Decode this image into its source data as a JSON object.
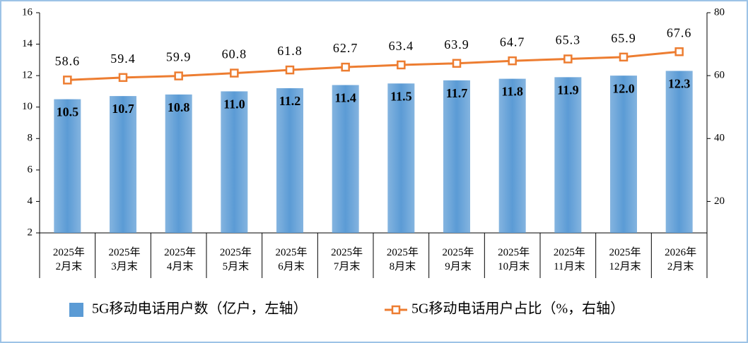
{
  "chart_data": {
    "type": "bar-line",
    "categories": [
      "2025年\n2月末",
      "2025年\n3月末",
      "2025年\n4月末",
      "2025年\n5月末",
      "2025年\n6月末",
      "2025年\n7月末",
      "2025年\n8月末",
      "2025年\n9月末",
      "2025年\n10月末",
      "2025年\n11月末",
      "2025年\n12月末",
      "2026年\n2月末"
    ],
    "series": [
      {
        "name": "5G移动电话用户数（亿户，左轴）",
        "type": "bar",
        "color": "#5b9bd5",
        "values": [
          10.5,
          10.7,
          10.8,
          11.0,
          11.2,
          11.4,
          11.5,
          11.7,
          11.8,
          11.9,
          12.0,
          12.3
        ],
        "value_labels": [
          "10.5",
          "10.7",
          "10.8",
          "11.0",
          "11.2",
          "11.4",
          "11.5",
          "11.7",
          "11.8",
          "11.9",
          "12.0",
          "12.3"
        ]
      },
      {
        "name": "5G移动电话用户占比（%，右轴）",
        "type": "line",
        "axis": "y2",
        "color": "#ed7d31",
        "values": [
          58.6,
          59.4,
          59.9,
          60.8,
          61.8,
          62.7,
          63.4,
          63.9,
          64.7,
          65.3,
          65.9,
          67.6
        ]
      }
    ],
    "ylim": [
      2,
      16
    ],
    "yticks": [
      2,
      4,
      6,
      8,
      10,
      12,
      14,
      16
    ],
    "y2lim": [
      10,
      80
    ],
    "y2ticks": [
      20,
      40,
      60,
      80
    ]
  }
}
